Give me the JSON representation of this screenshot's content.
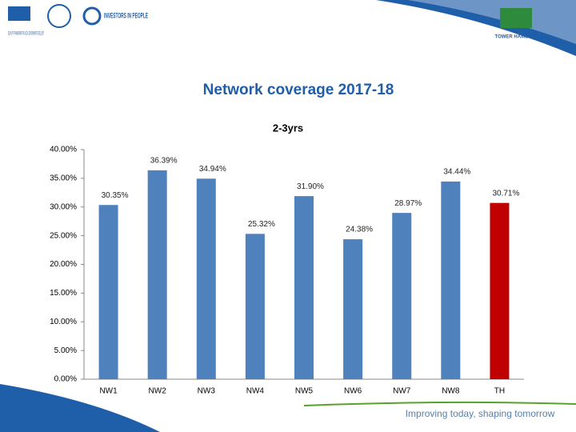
{
  "header": {
    "logo_left": "EQUALITY FRAMEWORK FOR LOCAL GOVERNMENT EXCELLENT",
    "logo_middle": "INVESTORS IN PEOPLE",
    "logo_right": "TOWER HAMLETS"
  },
  "slide_title": "Network coverage 2017-18",
  "footer": "Improving today, shaping tomorrow",
  "chart_data": {
    "type": "bar",
    "title": "2-3yrs",
    "categories": [
      "NW1",
      "NW2",
      "NW3",
      "NW4",
      "NW5",
      "NW6",
      "NW7",
      "NW8",
      "TH"
    ],
    "values": [
      30.35,
      36.39,
      34.94,
      25.32,
      31.9,
      24.38,
      28.97,
      34.44,
      30.71
    ],
    "value_labels": [
      "30.35%",
      "36.39%",
      "34.94%",
      "25.32%",
      "31.90%",
      "24.38%",
      "28.97%",
      "34.44%",
      "30.71%"
    ],
    "colors": [
      "#4f81bd",
      "#4f81bd",
      "#4f81bd",
      "#4f81bd",
      "#4f81bd",
      "#4f81bd",
      "#4f81bd",
      "#4f81bd",
      "#c00000"
    ],
    "ylim": [
      0,
      40
    ],
    "yticks": [
      {
        "value": 0,
        "label": "0.00%"
      },
      {
        "value": 5,
        "label": "5.00%"
      },
      {
        "value": 10,
        "label": "10.00%"
      },
      {
        "value": 15,
        "label": "15.00%"
      },
      {
        "value": 20,
        "label": "20.00%"
      },
      {
        "value": 25,
        "label": "25.00%"
      },
      {
        "value": 30,
        "label": "30.00%"
      },
      {
        "value": 35,
        "label": "35.00%"
      },
      {
        "value": 40,
        "label": "40.00%"
      }
    ],
    "grid": false
  }
}
